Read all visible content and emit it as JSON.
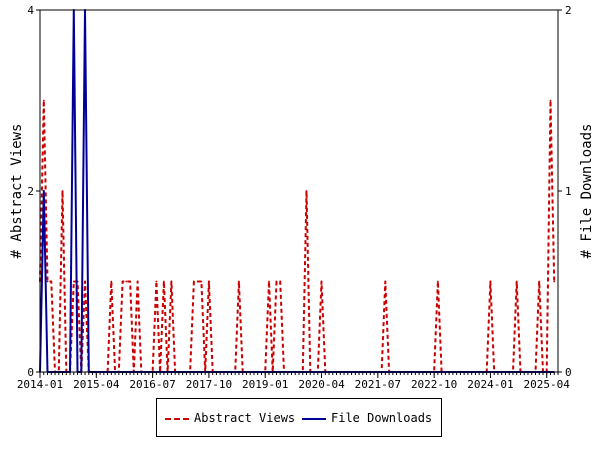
{
  "chart_data": {
    "type": "line",
    "title": "",
    "xlabel": "",
    "ylabel": "# Abstract Views",
    "y2label": "# File Downloads",
    "ylim": [
      0,
      4
    ],
    "y2lim": [
      0,
      2
    ],
    "yticks": [
      "0",
      "2",
      "4"
    ],
    "y2ticks": [
      "0",
      "1",
      "2"
    ],
    "xlim": [
      "2014-01",
      "2025-07"
    ],
    "xticks": [
      "2014-01",
      "2015-04",
      "2016-07",
      "2017-10",
      "2019-01",
      "2020-04",
      "2021-07",
      "2022-10",
      "2024-01",
      "2025-04"
    ],
    "legend_position": "bottom",
    "series": [
      {
        "name": "Abstract Views",
        "axis": "left",
        "color": "#cc0000",
        "style": "dashed",
        "points": [
          [
            "2014-01",
            1
          ],
          [
            "2014-02",
            3
          ],
          [
            "2014-03",
            1
          ],
          [
            "2014-04",
            1
          ],
          [
            "2014-05",
            0
          ],
          [
            "2014-06",
            0
          ],
          [
            "2014-07",
            2
          ],
          [
            "2014-08",
            0
          ],
          [
            "2014-09",
            0
          ],
          [
            "2014-10",
            1
          ],
          [
            "2014-11",
            1
          ],
          [
            "2014-12",
            0
          ],
          [
            "2015-01",
            1
          ],
          [
            "2015-02",
            0
          ],
          [
            "2015-03",
            0
          ],
          [
            "2015-04",
            0
          ],
          [
            "2015-05",
            0
          ],
          [
            "2015-06",
            0
          ],
          [
            "2015-07",
            0
          ],
          [
            "2015-08",
            1
          ],
          [
            "2015-09",
            0
          ],
          [
            "2015-10",
            0
          ],
          [
            "2015-11",
            1
          ],
          [
            "2015-12",
            1
          ],
          [
            "2016-01",
            1
          ],
          [
            "2016-02",
            0
          ],
          [
            "2016-03",
            1
          ],
          [
            "2016-04",
            0
          ],
          [
            "2016-05",
            0
          ],
          [
            "2016-06",
            0
          ],
          [
            "2016-07",
            0
          ],
          [
            "2016-08",
            1
          ],
          [
            "2016-09",
            0
          ],
          [
            "2016-10",
            1
          ],
          [
            "2016-11",
            0
          ],
          [
            "2016-12",
            1
          ],
          [
            "2017-01",
            0
          ],
          [
            "2017-02",
            0
          ],
          [
            "2017-03",
            0
          ],
          [
            "2017-04",
            0
          ],
          [
            "2017-05",
            0
          ],
          [
            "2017-06",
            1
          ],
          [
            "2017-07",
            1
          ],
          [
            "2017-08",
            1
          ],
          [
            "2017-09",
            0
          ],
          [
            "2017-10",
            1
          ],
          [
            "2017-11",
            0
          ],
          [
            "2017-12",
            0
          ],
          [
            "2018-01",
            0
          ],
          [
            "2018-02",
            0
          ],
          [
            "2018-03",
            0
          ],
          [
            "2018-04",
            0
          ],
          [
            "2018-05",
            0
          ],
          [
            "2018-06",
            1
          ],
          [
            "2018-07",
            0
          ],
          [
            "2018-08",
            0
          ],
          [
            "2018-09",
            0
          ],
          [
            "2018-10",
            0
          ],
          [
            "2018-11",
            0
          ],
          [
            "2018-12",
            0
          ],
          [
            "2019-01",
            0
          ],
          [
            "2019-02",
            1
          ],
          [
            "2019-03",
            0
          ],
          [
            "2019-04",
            1
          ],
          [
            "2019-05",
            1
          ],
          [
            "2019-06",
            0
          ],
          [
            "2019-07",
            0
          ],
          [
            "2019-08",
            0
          ],
          [
            "2019-09",
            0
          ],
          [
            "2019-10",
            0
          ],
          [
            "2019-11",
            0
          ],
          [
            "2019-12",
            2
          ],
          [
            "2020-01",
            0
          ],
          [
            "2020-02",
            0
          ],
          [
            "2020-03",
            0
          ],
          [
            "2020-04",
            1
          ],
          [
            "2020-05",
            0
          ],
          [
            "2020-06",
            0
          ],
          [
            "2020-07",
            0
          ],
          [
            "2020-08",
            0
          ],
          [
            "2020-09",
            0
          ],
          [
            "2020-10",
            0
          ],
          [
            "2020-11",
            0
          ],
          [
            "2020-12",
            0
          ],
          [
            "2021-01",
            0
          ],
          [
            "2021-02",
            0
          ],
          [
            "2021-03",
            0
          ],
          [
            "2021-04",
            0
          ],
          [
            "2021-05",
            0
          ],
          [
            "2021-06",
            0
          ],
          [
            "2021-07",
            0
          ],
          [
            "2021-08",
            0
          ],
          [
            "2021-09",
            1
          ],
          [
            "2021-10",
            0
          ],
          [
            "2021-11",
            0
          ],
          [
            "2021-12",
            0
          ],
          [
            "2022-01",
            0
          ],
          [
            "2022-02",
            0
          ],
          [
            "2022-03",
            0
          ],
          [
            "2022-04",
            0
          ],
          [
            "2022-05",
            0
          ],
          [
            "2022-06",
            0
          ],
          [
            "2022-07",
            0
          ],
          [
            "2022-08",
            0
          ],
          [
            "2022-09",
            0
          ],
          [
            "2022-10",
            0
          ],
          [
            "2022-11",
            1
          ],
          [
            "2022-12",
            0
          ],
          [
            "2023-01",
            0
          ],
          [
            "2023-02",
            0
          ],
          [
            "2023-03",
            0
          ],
          [
            "2023-04",
            0
          ],
          [
            "2023-05",
            0
          ],
          [
            "2023-06",
            0
          ],
          [
            "2023-07",
            0
          ],
          [
            "2023-08",
            0
          ],
          [
            "2023-09",
            0
          ],
          [
            "2023-10",
            0
          ],
          [
            "2023-11",
            0
          ],
          [
            "2023-12",
            0
          ],
          [
            "2024-01",
            1
          ],
          [
            "2024-02",
            0
          ],
          [
            "2024-03",
            0
          ],
          [
            "2024-04",
            0
          ],
          [
            "2024-05",
            0
          ],
          [
            "2024-06",
            0
          ],
          [
            "2024-07",
            0
          ],
          [
            "2024-08",
            1
          ],
          [
            "2024-09",
            0
          ],
          [
            "2024-10",
            0
          ],
          [
            "2024-11",
            0
          ],
          [
            "2024-12",
            0
          ],
          [
            "2025-01",
            0
          ],
          [
            "2025-02",
            1
          ],
          [
            "2025-03",
            0
          ],
          [
            "2025-04",
            0
          ],
          [
            "2025-05",
            3
          ],
          [
            "2025-06",
            1
          ]
        ]
      },
      {
        "name": "File Downloads",
        "axis": "right",
        "color": "#000099",
        "style": "solid",
        "points": [
          [
            "2014-01",
            0
          ],
          [
            "2014-02",
            1
          ],
          [
            "2014-03",
            0
          ],
          [
            "2014-04",
            0
          ],
          [
            "2014-05",
            0
          ],
          [
            "2014-06",
            0
          ],
          [
            "2014-07",
            0
          ],
          [
            "2014-08",
            0
          ],
          [
            "2014-09",
            0
          ],
          [
            "2014-10",
            2
          ],
          [
            "2014-11",
            0
          ],
          [
            "2014-12",
            0
          ],
          [
            "2015-01",
            2
          ],
          [
            "2015-02",
            0
          ],
          [
            "2015-03",
            0
          ],
          [
            "2015-04",
            0
          ],
          [
            "2015-05",
            0
          ],
          [
            "2015-06",
            0
          ],
          [
            "2015-07",
            0
          ],
          [
            "2015-08",
            0
          ],
          [
            "2015-09",
            0
          ],
          [
            "2015-10",
            0
          ],
          [
            "2015-11",
            0
          ],
          [
            "2015-12",
            0
          ],
          [
            "2016-01",
            0
          ],
          [
            "2016-06",
            0
          ],
          [
            "2017-01",
            0
          ],
          [
            "2018-01",
            0
          ],
          [
            "2019-01",
            0
          ],
          [
            "2020-01",
            0
          ],
          [
            "2021-01",
            0
          ],
          [
            "2022-01",
            0
          ],
          [
            "2023-01",
            0
          ],
          [
            "2024-01",
            0
          ],
          [
            "2025-01",
            0
          ],
          [
            "2025-06",
            0
          ]
        ]
      }
    ]
  }
}
